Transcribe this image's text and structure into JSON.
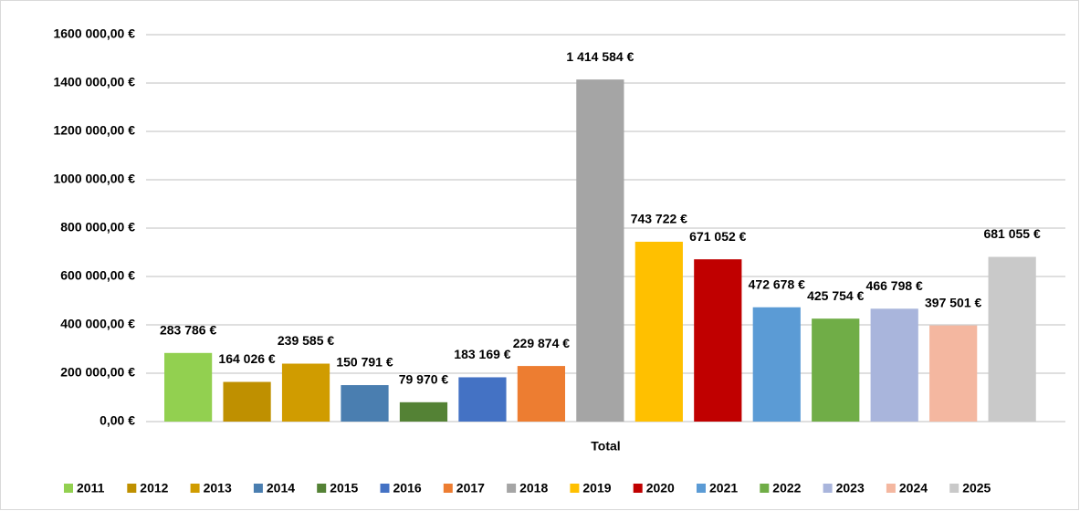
{
  "chart_data": {
    "type": "bar",
    "categories": [
      "Total"
    ],
    "series": [
      {
        "name": "2011",
        "color": "#92d050",
        "values": [
          283786
        ],
        "value_labels": [
          "283 786 €"
        ]
      },
      {
        "name": "2012",
        "color": "#bf9000",
        "values": [
          164026
        ],
        "value_labels": [
          "164 026 €"
        ]
      },
      {
        "name": "2013",
        "color": "#d09c00",
        "values": [
          239585
        ],
        "value_labels": [
          "239 585 €"
        ]
      },
      {
        "name": "2014",
        "color": "#4a7eb0",
        "values": [
          150791
        ],
        "value_labels": [
          "150 791 €"
        ]
      },
      {
        "name": "2015",
        "color": "#548235",
        "values": [
          79970
        ],
        "value_labels": [
          "79 970 €"
        ]
      },
      {
        "name": "2016",
        "color": "#4472c4",
        "values": [
          183169
        ],
        "value_labels": [
          "183 169 €"
        ]
      },
      {
        "name": "2017",
        "color": "#ed7d31",
        "values": [
          229874
        ],
        "value_labels": [
          "229 874 €"
        ]
      },
      {
        "name": "2018",
        "color": "#a5a5a5",
        "values": [
          1414584
        ],
        "value_labels": [
          "1 414 584 €"
        ]
      },
      {
        "name": "2019",
        "color": "#ffc000",
        "values": [
          743722
        ],
        "value_labels": [
          "743 722 €"
        ]
      },
      {
        "name": "2020",
        "color": "#c00000",
        "values": [
          671052
        ],
        "value_labels": [
          "671 052 €"
        ]
      },
      {
        "name": "2021",
        "color": "#5b9bd5",
        "values": [
          472678
        ],
        "value_labels": [
          "472 678 €"
        ]
      },
      {
        "name": "2022",
        "color": "#70ad47",
        "values": [
          425754
        ],
        "value_labels": [
          "425 754 €"
        ]
      },
      {
        "name": "2023",
        "color": "#a9b5dc",
        "values": [
          466798
        ],
        "value_labels": [
          "466 798 €"
        ]
      },
      {
        "name": "2024",
        "color": "#f4b7a0",
        "values": [
          397501
        ],
        "value_labels": [
          "397 501 €"
        ]
      },
      {
        "name": "2025",
        "color": "#c9c9c9",
        "values": [
          681055
        ],
        "value_labels": [
          "681 055 €"
        ]
      }
    ],
    "ylim": [
      0,
      1600000
    ],
    "yticks": [
      {
        "value": 0,
        "label": "0,00 €"
      },
      {
        "value": 200000,
        "label": "200 000,00 €"
      },
      {
        "value": 400000,
        "label": "400 000,00 €"
      },
      {
        "value": 600000,
        "label": "600 000,00 €"
      },
      {
        "value": 800000,
        "label": "800 000,00 €"
      },
      {
        "value": 1000000,
        "label": "1000 000,00 €"
      },
      {
        "value": 1200000,
        "label": "1200 000,00 €"
      },
      {
        "value": 1400000,
        "label": "1400 000,00 €"
      },
      {
        "value": 1600000,
        "label": "1600 000,00 €"
      }
    ],
    "grid": true,
    "legend": "bottom"
  }
}
